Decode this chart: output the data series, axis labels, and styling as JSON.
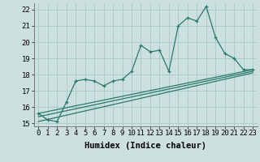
{
  "title": "",
  "xlabel": "Humidex (Indice chaleur)",
  "ylabel": "",
  "xlim": [
    -0.5,
    23.5
  ],
  "ylim": [
    14.8,
    22.4
  ],
  "yticks": [
    15,
    16,
    17,
    18,
    19,
    20,
    21,
    22
  ],
  "xticks": [
    0,
    1,
    2,
    3,
    4,
    5,
    6,
    7,
    8,
    9,
    10,
    11,
    12,
    13,
    14,
    15,
    16,
    17,
    18,
    19,
    20,
    21,
    22,
    23
  ],
  "background_color": "#cce0e0",
  "grid_color": "#aacccc",
  "line_color": "#2a7a6a",
  "line1_x": [
    0,
    1,
    2,
    3,
    4,
    5,
    6,
    7,
    8,
    9,
    10,
    11,
    12,
    13,
    14,
    15,
    16,
    17,
    18,
    19,
    20,
    21,
    22,
    23
  ],
  "line1_y": [
    15.6,
    15.2,
    15.1,
    16.3,
    17.6,
    17.7,
    17.6,
    17.3,
    17.6,
    17.7,
    18.2,
    19.8,
    19.4,
    19.5,
    18.2,
    21.0,
    21.5,
    21.3,
    22.2,
    20.3,
    19.3,
    19.0,
    18.3,
    18.3
  ],
  "line2_x": [
    0,
    23
  ],
  "line2_y": [
    15.6,
    18.3
  ],
  "line3_x": [
    0,
    23
  ],
  "line3_y": [
    15.4,
    18.2
  ],
  "line4_x": [
    0,
    23
  ],
  "line4_y": [
    15.1,
    18.1
  ],
  "font_size": 7.5,
  "xlabel_fontsize": 7.5
}
